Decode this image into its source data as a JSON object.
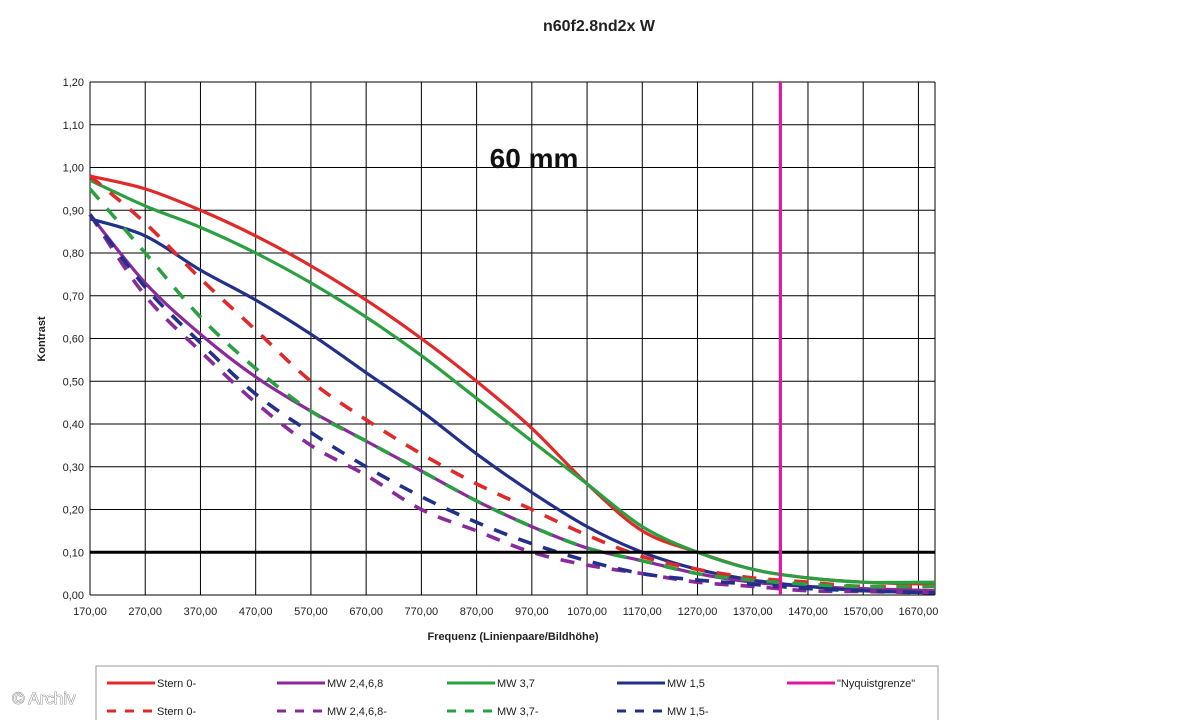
{
  "watermark": "© Archiv",
  "chart_data": {
    "type": "line",
    "title": "n60f2.8nd2x W",
    "annotation": "60 mm",
    "xlabel": "Frequenz (Linienpaare/Bildhöhe)",
    "ylabel": "Kontrast",
    "xlim": [
      170,
      1700
    ],
    "ylim": [
      0,
      1.2
    ],
    "x_ticks": [
      "170,00",
      "270,00",
      "370,00",
      "470,00",
      "570,00",
      "670,00",
      "770,00",
      "870,00",
      "970,00",
      "1070,00",
      "1170,00",
      "1270,00",
      "1370,00",
      "1470,00",
      "1570,00",
      "1670,00"
    ],
    "y_ticks": [
      "0,00",
      "0,10",
      "0,20",
      "0,30",
      "0,40",
      "0,50",
      "0,60",
      "0,70",
      "0,80",
      "0,90",
      "1,00",
      "1,10",
      "1,20"
    ],
    "grid": true,
    "legend_position": "bottom",
    "threshold_line": {
      "y": 0.1,
      "color": "#000000"
    },
    "nyquist": {
      "name": "\"Nyquistgrenze\"",
      "x": 1420,
      "color": "#e0189a"
    },
    "series": [
      {
        "name": "Stern 0-",
        "color": "#e02a2a",
        "dashed": false,
        "x": [
          170,
          270,
          370,
          470,
          570,
          670,
          770,
          870,
          970,
          1070,
          1170,
          1270,
          1370,
          1470,
          1570,
          1700
        ],
        "y": [
          0.98,
          0.95,
          0.9,
          0.84,
          0.77,
          0.69,
          0.6,
          0.5,
          0.39,
          0.26,
          0.15,
          0.1,
          0.06,
          0.04,
          0.03,
          0.025
        ]
      },
      {
        "name": "MW 2,4,6,8",
        "color": "#8a2a9a",
        "dashed": false,
        "x": [
          170,
          270,
          370,
          470,
          570,
          670,
          770,
          870,
          970,
          1070,
          1170,
          1270,
          1370,
          1470,
          1570,
          1700
        ],
        "y": [
          0.89,
          0.73,
          0.61,
          0.51,
          0.43,
          0.36,
          0.29,
          0.22,
          0.16,
          0.11,
          0.08,
          0.05,
          0.03,
          0.02,
          0.015,
          0.01
        ]
      },
      {
        "name": "MW 3,7",
        "color": "#2aa040",
        "dashed": false,
        "x": [
          170,
          270,
          370,
          470,
          570,
          670,
          770,
          870,
          970,
          1070,
          1170,
          1270,
          1370,
          1470,
          1570,
          1700
        ],
        "y": [
          0.97,
          0.91,
          0.86,
          0.8,
          0.73,
          0.65,
          0.56,
          0.46,
          0.36,
          0.26,
          0.16,
          0.1,
          0.06,
          0.04,
          0.03,
          0.03
        ]
      },
      {
        "name": "MW 1,5",
        "color": "#22308a",
        "dashed": false,
        "x": [
          170,
          270,
          370,
          470,
          570,
          670,
          770,
          870,
          970,
          1070,
          1170,
          1270,
          1370,
          1470,
          1570,
          1700
        ],
        "y": [
          0.88,
          0.84,
          0.76,
          0.69,
          0.61,
          0.52,
          0.43,
          0.33,
          0.24,
          0.16,
          0.1,
          0.06,
          0.035,
          0.02,
          0.01,
          0.005
        ]
      },
      {
        "name": "Nyquistgrenze",
        "color": "#e0189a",
        "dashed": false,
        "vertical": true,
        "x": [
          1420,
          1420
        ],
        "y": [
          0,
          1.2
        ]
      },
      {
        "name": "Stern 0-",
        "color": "#e02a2a",
        "dashed": true,
        "x": [
          170,
          270,
          370,
          470,
          570,
          670,
          770,
          870,
          970,
          1070,
          1170,
          1270,
          1370,
          1470,
          1570,
          1700
        ],
        "y": [
          0.98,
          0.87,
          0.74,
          0.62,
          0.5,
          0.41,
          0.33,
          0.26,
          0.2,
          0.14,
          0.09,
          0.06,
          0.04,
          0.03,
          0.02,
          0.02
        ]
      },
      {
        "name": "MW 2,4,6,8-",
        "color": "#8a2a9a",
        "dashed": true,
        "x": [
          170,
          270,
          370,
          470,
          570,
          670,
          770,
          870,
          970,
          1070,
          1170,
          1270,
          1370,
          1470,
          1570,
          1700
        ],
        "y": [
          0.89,
          0.7,
          0.57,
          0.45,
          0.35,
          0.28,
          0.2,
          0.15,
          0.1,
          0.07,
          0.05,
          0.03,
          0.02,
          0.01,
          0.008,
          0.005
        ]
      },
      {
        "name": "MW 3,7-",
        "color": "#2aa040",
        "dashed": true,
        "x": [
          170,
          270,
          370,
          470,
          570,
          670,
          770,
          870,
          970,
          1070,
          1170,
          1270,
          1370,
          1470,
          1570,
          1700
        ],
        "y": [
          0.95,
          0.8,
          0.65,
          0.53,
          0.43,
          0.36,
          0.29,
          0.22,
          0.16,
          0.11,
          0.08,
          0.05,
          0.035,
          0.025,
          0.02,
          0.02
        ]
      },
      {
        "name": "MW 1,5-",
        "color": "#22308a",
        "dashed": true,
        "x": [
          170,
          270,
          370,
          470,
          570,
          670,
          770,
          870,
          970,
          1070,
          1170,
          1270,
          1370,
          1470,
          1570,
          1700
        ],
        "y": [
          0.89,
          0.72,
          0.59,
          0.47,
          0.38,
          0.3,
          0.23,
          0.17,
          0.12,
          0.08,
          0.05,
          0.035,
          0.025,
          0.015,
          0.01,
          0.005
        ]
      }
    ]
  }
}
